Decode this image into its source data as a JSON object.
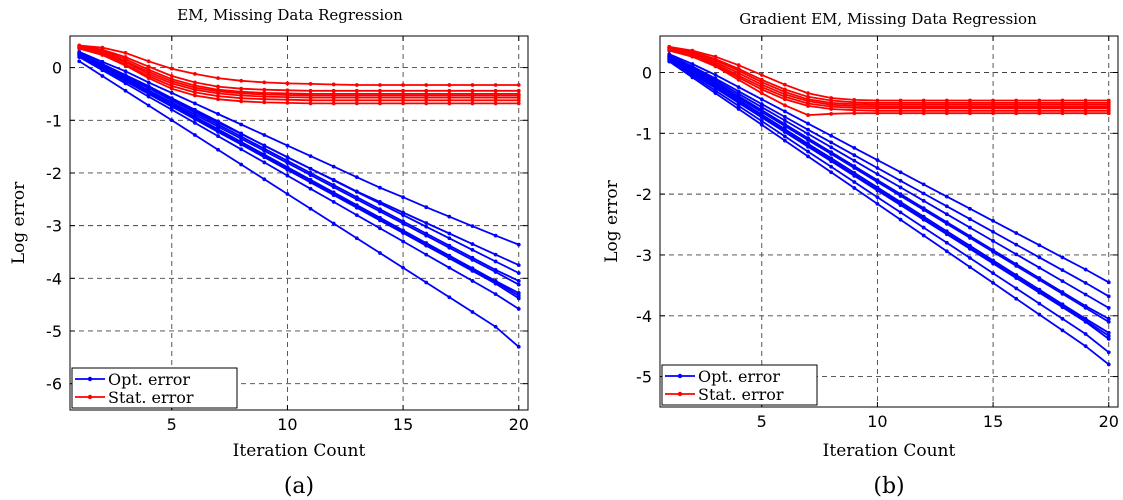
{
  "colors": {
    "opt": "#0000ff",
    "stat": "#ff0000"
  },
  "chart_data": [
    {
      "type": "line",
      "title": "EM, Missing Data Regression",
      "xlabel": "Iteration Count",
      "ylabel": "Log error",
      "caption": "(a)",
      "xlim": [
        0.6,
        20.4
      ],
      "ylim": [
        -6.5,
        0.6
      ],
      "xticks": [
        5,
        10,
        15,
        20
      ],
      "yticks": [
        0,
        -1,
        -2,
        -3,
        -4,
        -5,
        -6
      ],
      "grid": true,
      "legend_position": "bottom-left",
      "legend": [
        "Opt. error",
        "Stat. error"
      ],
      "x": [
        1,
        2,
        3,
        4,
        5,
        6,
        7,
        8,
        9,
        10,
        11,
        12,
        13,
        14,
        15,
        16,
        17,
        18,
        19,
        20
      ],
      "series": [
        {
          "group": "opt",
          "values": [
            0.28,
            0.07,
            -0.14,
            -0.35,
            -0.58,
            -0.8,
            -1.02,
            -1.25,
            -1.48,
            -1.7,
            -1.92,
            -2.13,
            -2.35,
            -2.55,
            -2.75,
            -2.95,
            -3.15,
            -3.35,
            -3.55,
            -3.75
          ]
        },
        {
          "group": "opt",
          "values": [
            0.3,
            0.11,
            -0.07,
            -0.28,
            -0.48,
            -0.68,
            -0.88,
            -1.08,
            -1.28,
            -1.48,
            -1.68,
            -1.88,
            -2.08,
            -2.28,
            -2.46,
            -2.65,
            -2.83,
            -3.01,
            -3.19,
            -3.36
          ]
        },
        {
          "group": "opt",
          "values": [
            0.27,
            0.06,
            -0.16,
            -0.38,
            -0.6,
            -0.82,
            -1.04,
            -1.26,
            -1.48,
            -1.7,
            -1.92,
            -2.14,
            -2.36,
            -2.58,
            -2.8,
            -3.02,
            -3.24,
            -3.46,
            -3.68,
            -3.9
          ]
        },
        {
          "group": "opt",
          "values": [
            0.26,
            0.05,
            -0.17,
            -0.39,
            -0.62,
            -0.85,
            -1.08,
            -1.31,
            -1.54,
            -1.77,
            -2.0,
            -2.23,
            -2.46,
            -2.69,
            -2.92,
            -3.15,
            -3.38,
            -3.61,
            -3.84,
            -4.05
          ]
        },
        {
          "group": "opt",
          "values": [
            0.24,
            0.03,
            -0.2,
            -0.43,
            -0.66,
            -0.89,
            -1.12,
            -1.35,
            -1.58,
            -1.81,
            -2.04,
            -2.27,
            -2.5,
            -2.73,
            -2.96,
            -3.19,
            -3.42,
            -3.65,
            -3.88,
            -4.12
          ]
        },
        {
          "group": "opt",
          "values": [
            0.25,
            0.02,
            -0.21,
            -0.45,
            -0.69,
            -0.93,
            -1.17,
            -1.41,
            -1.65,
            -1.89,
            -2.13,
            -2.37,
            -2.61,
            -2.85,
            -3.09,
            -3.33,
            -3.57,
            -3.81,
            -4.05,
            -4.28
          ]
        },
        {
          "group": "opt",
          "values": [
            0.23,
            0.0,
            -0.23,
            -0.47,
            -0.71,
            -0.95,
            -1.19,
            -1.43,
            -1.67,
            -1.91,
            -2.15,
            -2.39,
            -2.63,
            -2.87,
            -3.11,
            -3.35,
            -3.59,
            -3.83,
            -4.07,
            -4.33
          ]
        },
        {
          "group": "opt",
          "values": [
            0.22,
            -0.02,
            -0.26,
            -0.5,
            -0.74,
            -0.98,
            -1.22,
            -1.46,
            -1.7,
            -1.94,
            -2.18,
            -2.42,
            -2.66,
            -2.9,
            -3.14,
            -3.38,
            -3.62,
            -3.86,
            -4.1,
            -4.38
          ]
        },
        {
          "group": "opt",
          "values": [
            0.2,
            -0.05,
            -0.3,
            -0.55,
            -0.8,
            -1.05,
            -1.3,
            -1.55,
            -1.8,
            -2.05,
            -2.3,
            -2.55,
            -2.8,
            -3.05,
            -3.3,
            -3.55,
            -3.8,
            -4.05,
            -4.3,
            -4.58
          ]
        },
        {
          "group": "opt",
          "values": [
            0.12,
            -0.16,
            -0.44,
            -0.72,
            -1.0,
            -1.28,
            -1.56,
            -1.84,
            -2.12,
            -2.4,
            -2.68,
            -2.96,
            -3.24,
            -3.52,
            -3.8,
            -4.08,
            -4.36,
            -4.64,
            -4.92,
            -5.3
          ]
        },
        {
          "group": "stat",
          "values": [
            0.42,
            0.38,
            0.28,
            0.12,
            -0.02,
            -0.12,
            -0.2,
            -0.25,
            -0.28,
            -0.3,
            -0.31,
            -0.32,
            -0.33,
            -0.33,
            -0.33,
            -0.33,
            -0.33,
            -0.33,
            -0.33,
            -0.33
          ]
        },
        {
          "group": "stat",
          "values": [
            0.42,
            0.34,
            0.2,
            0.02,
            -0.16,
            -0.28,
            -0.36,
            -0.4,
            -0.42,
            -0.43,
            -0.44,
            -0.44,
            -0.44,
            -0.44,
            -0.44,
            -0.44,
            -0.44,
            -0.44,
            -0.44,
            -0.44
          ]
        },
        {
          "group": "stat",
          "values": [
            0.4,
            0.32,
            0.16,
            -0.04,
            -0.22,
            -0.34,
            -0.42,
            -0.46,
            -0.48,
            -0.49,
            -0.5,
            -0.5,
            -0.5,
            -0.5,
            -0.5,
            -0.5,
            -0.5,
            -0.5,
            -0.5,
            -0.5
          ]
        },
        {
          "group": "stat",
          "values": [
            0.4,
            0.3,
            0.12,
            -0.08,
            -0.26,
            -0.38,
            -0.45,
            -0.49,
            -0.51,
            -0.52,
            -0.53,
            -0.53,
            -0.53,
            -0.53,
            -0.53,
            -0.53,
            -0.53,
            -0.53,
            -0.53,
            -0.53
          ]
        },
        {
          "group": "stat",
          "values": [
            0.38,
            0.28,
            0.1,
            -0.12,
            -0.3,
            -0.42,
            -0.49,
            -0.53,
            -0.55,
            -0.56,
            -0.57,
            -0.57,
            -0.57,
            -0.57,
            -0.57,
            -0.57,
            -0.57,
            -0.57,
            -0.57,
            -0.57
          ]
        },
        {
          "group": "stat",
          "values": [
            0.38,
            0.26,
            0.06,
            -0.16,
            -0.35,
            -0.47,
            -0.54,
            -0.58,
            -0.6,
            -0.61,
            -0.62,
            -0.62,
            -0.62,
            -0.62,
            -0.62,
            -0.62,
            -0.62,
            -0.62,
            -0.62,
            -0.62
          ]
        },
        {
          "group": "stat",
          "values": [
            0.36,
            0.24,
            0.04,
            -0.2,
            -0.4,
            -0.53,
            -0.6,
            -0.64,
            -0.66,
            -0.67,
            -0.68,
            -0.68,
            -0.68,
            -0.68,
            -0.68,
            -0.68,
            -0.68,
            -0.68,
            -0.68,
            -0.68
          ]
        }
      ]
    },
    {
      "type": "line",
      "title": "Gradient EM, Missing Data Regression",
      "xlabel": "Iteration Count",
      "ylabel": "Log error",
      "caption": "(b)",
      "xlim": [
        0.6,
        20.4
      ],
      "ylim": [
        -5.5,
        0.6
      ],
      "xticks": [
        5,
        10,
        15,
        20
      ],
      "yticks": [
        0,
        -1,
        -2,
        -3,
        -4,
        -5
      ],
      "grid": true,
      "legend_position": "bottom-left",
      "legend": [
        "Opt. error",
        "Stat. error"
      ],
      "x": [
        1,
        2,
        3,
        4,
        5,
        6,
        7,
        8,
        9,
        10,
        11,
        12,
        13,
        14,
        15,
        16,
        17,
        18,
        19,
        20
      ],
      "series": [
        {
          "group": "opt",
          "values": [
            0.3,
            0.14,
            -0.04,
            -0.24,
            -0.44,
            -0.64,
            -0.84,
            -1.04,
            -1.24,
            -1.44,
            -1.64,
            -1.84,
            -2.04,
            -2.24,
            -2.44,
            -2.64,
            -2.84,
            -3.04,
            -3.24,
            -3.45
          ]
        },
        {
          "group": "opt",
          "values": [
            0.28,
            0.1,
            -0.1,
            -0.31,
            -0.52,
            -0.73,
            -0.94,
            -1.15,
            -1.36,
            -1.57,
            -1.78,
            -1.99,
            -2.2,
            -2.41,
            -2.62,
            -2.83,
            -3.04,
            -3.25,
            -3.46,
            -3.68
          ]
        },
        {
          "group": "opt",
          "values": [
            0.27,
            0.08,
            -0.13,
            -0.35,
            -0.57,
            -0.79,
            -1.01,
            -1.23,
            -1.45,
            -1.67,
            -1.89,
            -2.11,
            -2.33,
            -2.55,
            -2.77,
            -2.99,
            -3.21,
            -3.43,
            -3.65,
            -3.87
          ]
        },
        {
          "group": "opt",
          "values": [
            0.26,
            0.06,
            -0.16,
            -0.39,
            -0.62,
            -0.85,
            -1.08,
            -1.31,
            -1.54,
            -1.77,
            -2.0,
            -2.23,
            -2.46,
            -2.69,
            -2.92,
            -3.15,
            -3.38,
            -3.61,
            -3.84,
            -4.05
          ]
        },
        {
          "group": "opt",
          "values": [
            0.25,
            0.04,
            -0.19,
            -0.42,
            -0.65,
            -0.88,
            -1.11,
            -1.34,
            -1.57,
            -1.8,
            -2.03,
            -2.26,
            -2.49,
            -2.72,
            -2.95,
            -3.18,
            -3.41,
            -3.64,
            -3.87,
            -4.1
          ]
        },
        {
          "group": "opt",
          "values": [
            0.24,
            0.02,
            -0.21,
            -0.45,
            -0.69,
            -0.93,
            -1.17,
            -1.41,
            -1.65,
            -1.89,
            -2.13,
            -2.37,
            -2.61,
            -2.85,
            -3.09,
            -3.33,
            -3.57,
            -3.81,
            -4.05,
            -4.28
          ]
        },
        {
          "group": "opt",
          "values": [
            0.23,
            0.0,
            -0.24,
            -0.48,
            -0.72,
            -0.96,
            -1.2,
            -1.44,
            -1.68,
            -1.92,
            -2.16,
            -2.4,
            -2.64,
            -2.88,
            -3.12,
            -3.36,
            -3.6,
            -3.84,
            -4.08,
            -4.33
          ]
        },
        {
          "group": "opt",
          "values": [
            0.22,
            -0.02,
            -0.26,
            -0.5,
            -0.74,
            -0.98,
            -1.22,
            -1.46,
            -1.7,
            -1.94,
            -2.18,
            -2.42,
            -2.66,
            -2.9,
            -3.14,
            -3.38,
            -3.62,
            -3.86,
            -4.1,
            -4.38
          ]
        },
        {
          "group": "opt",
          "values": [
            0.2,
            -0.05,
            -0.3,
            -0.55,
            -0.8,
            -1.05,
            -1.3,
            -1.55,
            -1.8,
            -2.05,
            -2.3,
            -2.55,
            -2.8,
            -3.05,
            -3.3,
            -3.55,
            -3.8,
            -4.05,
            -4.3,
            -4.6
          ]
        },
        {
          "group": "opt",
          "values": [
            0.18,
            -0.08,
            -0.34,
            -0.6,
            -0.86,
            -1.12,
            -1.38,
            -1.64,
            -1.9,
            -2.16,
            -2.42,
            -2.68,
            -2.94,
            -3.2,
            -3.46,
            -3.72,
            -3.98,
            -4.24,
            -4.5,
            -4.8
          ]
        },
        {
          "group": "stat",
          "values": [
            0.42,
            0.36,
            0.26,
            0.12,
            -0.04,
            -0.2,
            -0.34,
            -0.42,
            -0.45,
            -0.46,
            -0.46,
            -0.46,
            -0.46,
            -0.46,
            -0.46,
            -0.46,
            -0.46,
            -0.46,
            -0.46,
            -0.46
          ]
        },
        {
          "group": "stat",
          "values": [
            0.42,
            0.34,
            0.22,
            0.06,
            -0.12,
            -0.28,
            -0.4,
            -0.46,
            -0.49,
            -0.5,
            -0.5,
            -0.5,
            -0.5,
            -0.5,
            -0.5,
            -0.5,
            -0.5,
            -0.5,
            -0.5,
            -0.5
          ]
        },
        {
          "group": "stat",
          "values": [
            0.4,
            0.33,
            0.2,
            0.03,
            -0.16,
            -0.32,
            -0.44,
            -0.5,
            -0.52,
            -0.53,
            -0.53,
            -0.53,
            -0.53,
            -0.53,
            -0.53,
            -0.53,
            -0.53,
            -0.53,
            -0.53,
            -0.53
          ]
        },
        {
          "group": "stat",
          "values": [
            0.4,
            0.31,
            0.17,
            -0.01,
            -0.2,
            -0.36,
            -0.47,
            -0.53,
            -0.55,
            -0.56,
            -0.56,
            -0.56,
            -0.56,
            -0.56,
            -0.56,
            -0.56,
            -0.56,
            -0.56,
            -0.56,
            -0.56
          ]
        },
        {
          "group": "stat",
          "values": [
            0.38,
            0.3,
            0.14,
            -0.05,
            -0.24,
            -0.4,
            -0.51,
            -0.56,
            -0.58,
            -0.59,
            -0.59,
            -0.59,
            -0.59,
            -0.59,
            -0.59,
            -0.59,
            -0.59,
            -0.59,
            -0.59,
            -0.59
          ]
        },
        {
          "group": "stat",
          "values": [
            0.36,
            0.28,
            0.12,
            -0.08,
            -0.28,
            -0.44,
            -0.55,
            -0.6,
            -0.62,
            -0.63,
            -0.63,
            -0.63,
            -0.63,
            -0.63,
            -0.63,
            -0.63,
            -0.63,
            -0.63,
            -0.63,
            -0.63
          ]
        },
        {
          "group": "stat",
          "values": [
            0.36,
            0.26,
            0.1,
            -0.12,
            -0.34,
            -0.54,
            -0.7,
            -0.68,
            -0.67,
            -0.67,
            -0.67,
            -0.67,
            -0.67,
            -0.67,
            -0.67,
            -0.67,
            -0.67,
            -0.67,
            -0.67,
            -0.67
          ]
        }
      ]
    }
  ]
}
